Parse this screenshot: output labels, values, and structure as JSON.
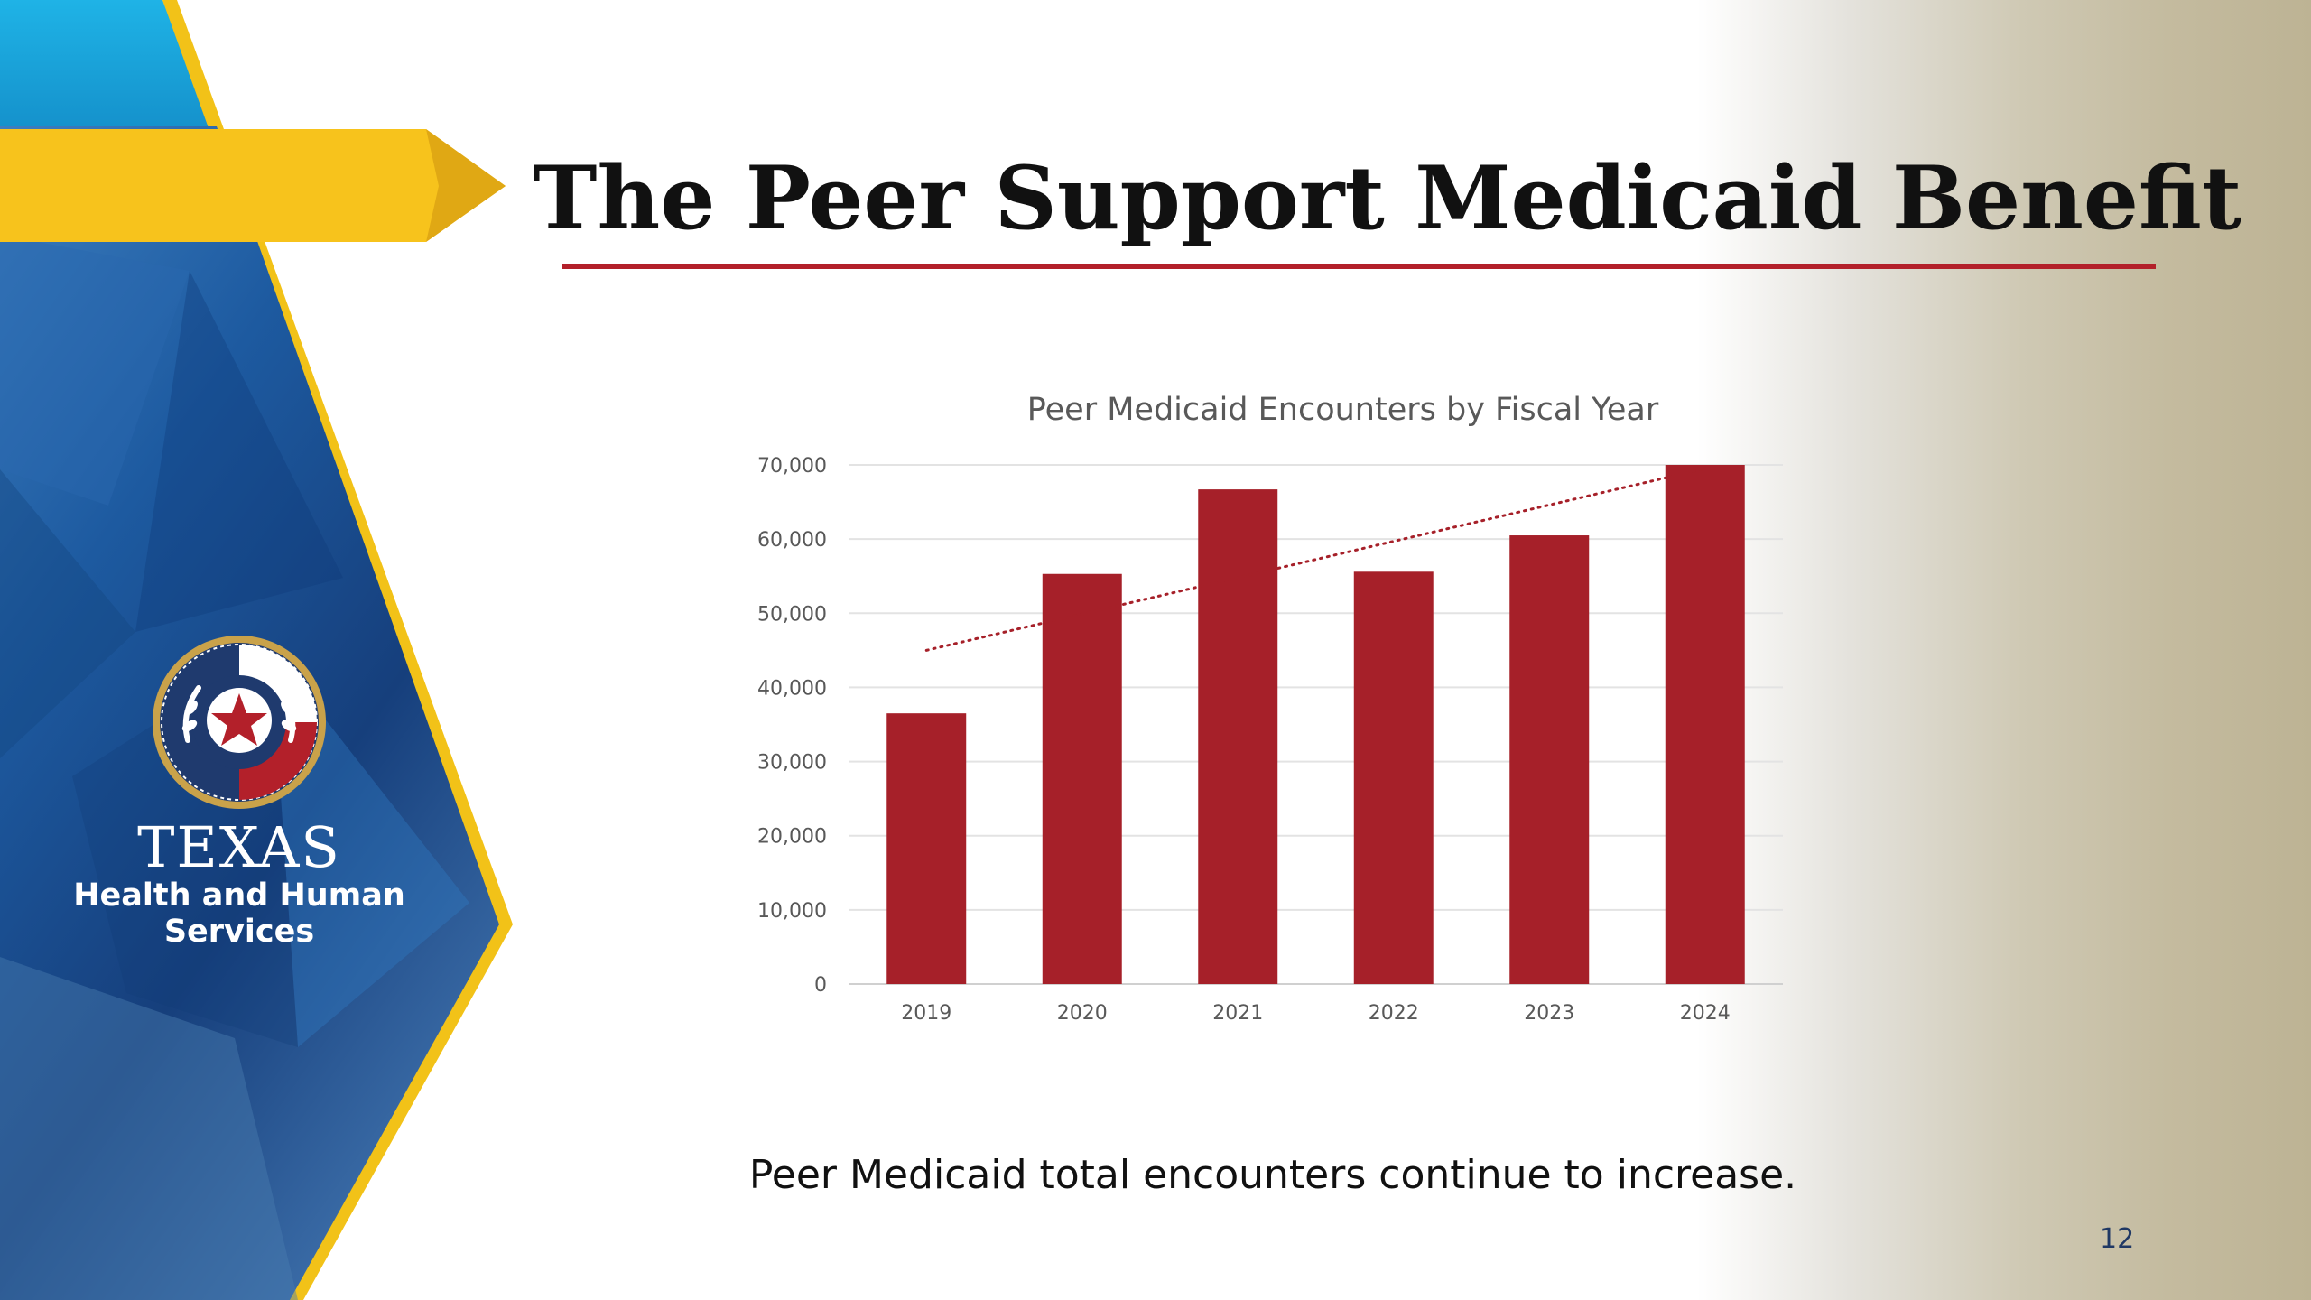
{
  "slide": {
    "title": "The Peer Support Medicaid Benefit",
    "caption": "Peer Medicaid total encounters continue to increase.",
    "page_number": "12"
  },
  "logo": {
    "texas": "TEXAS",
    "line1": "Health and Human",
    "line2": "Services"
  },
  "colors": {
    "accent_red": "#b3202a",
    "bar_red": "#a62029",
    "arrow_yellow": "#f7c31c",
    "panel_blue": "#1f4e8c",
    "sky_blue": "#1aa6dc"
  },
  "chart_data": {
    "type": "bar",
    "title": "Peer Medicaid Encounters by Fiscal Year",
    "categories": [
      "2019",
      "2020",
      "2021",
      "2022",
      "2023",
      "2024"
    ],
    "values": [
      36500,
      55300,
      66700,
      55600,
      60500,
      70000
    ],
    "ylim": [
      0,
      70000
    ],
    "yticks": [
      0,
      10000,
      20000,
      30000,
      40000,
      50000,
      60000,
      70000
    ],
    "ytick_labels": [
      "0",
      "10,000",
      "20,000",
      "30,000",
      "40,000",
      "50,000",
      "60,000",
      "70,000"
    ],
    "grid": true,
    "xlabel": "",
    "ylabel": "",
    "trendline": {
      "type": "linear",
      "style": "dotted",
      "start": 45000,
      "end": 69500
    }
  }
}
